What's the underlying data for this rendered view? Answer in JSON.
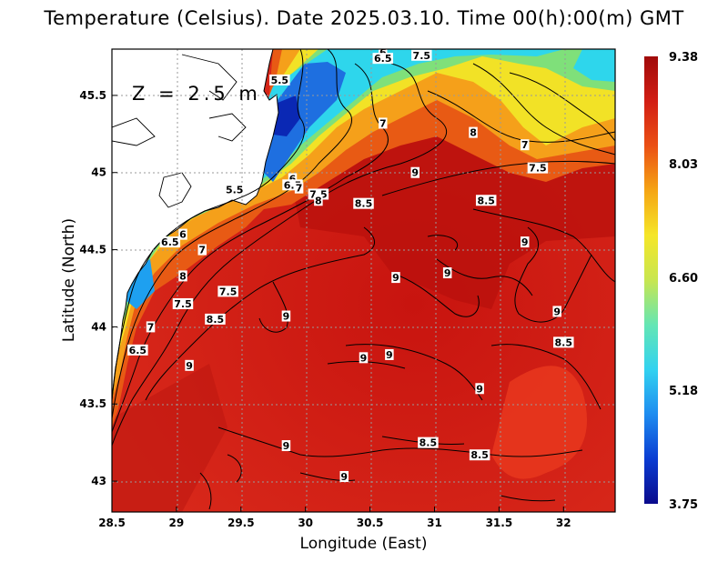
{
  "title": "Temperature (Celsius). Date 2025.03.10. Time 00(h):00(m) GMT",
  "depth_label": "Z = 2.5 m",
  "xlabel": "Longitude (East)",
  "ylabel": "Latitude (North)",
  "x_ticks": [
    "28.5",
    "29",
    "29.5",
    "30",
    "30.5",
    "31",
    "31.5",
    "32"
  ],
  "y_ticks": [
    "43",
    "43.5",
    "44",
    "44.5",
    "45",
    "45.5"
  ],
  "colorbar": {
    "ticks": [
      "9.38",
      "8.03",
      "6.60",
      "5.18",
      "3.75"
    ],
    "min": 3.75,
    "max": 9.38,
    "colors": [
      "#0a0a8c",
      "#0a3cd2",
      "#1e8cf0",
      "#32d2f0",
      "#64e6b4",
      "#c8e650",
      "#f5e628",
      "#f5a514",
      "#eb5014",
      "#d21e14",
      "#a00a0a"
    ]
  },
  "chart_data": {
    "type": "heatmap",
    "variable": "Temperature (Celsius)",
    "date": "2025.03.10",
    "time": "00(h):00(m) GMT",
    "depth": "Z = 2.5 m",
    "xlim": [
      28.5,
      32.4
    ],
    "ylim": [
      42.8,
      45.8
    ],
    "color_range": [
      3.75,
      9.38
    ],
    "grid": true,
    "contour_labels": [
      {
        "lon": 29.8,
        "lat": 45.6,
        "text": "5.5"
      },
      {
        "lon": 30.6,
        "lat": 45.78,
        "text": "6"
      },
      {
        "lon": 30.6,
        "lat": 45.74,
        "text": "6.5"
      },
      {
        "lon": 30.9,
        "lat": 45.76,
        "text": "7.5"
      },
      {
        "lon": 30.6,
        "lat": 45.32,
        "text": "7"
      },
      {
        "lon": 31.3,
        "lat": 45.26,
        "text": "8"
      },
      {
        "lon": 31.7,
        "lat": 45.18,
        "text": "7"
      },
      {
        "lon": 31.8,
        "lat": 45.03,
        "text": "7.5"
      },
      {
        "lon": 29.45,
        "lat": 44.89,
        "text": "5.5"
      },
      {
        "lon": 29.9,
        "lat": 44.96,
        "text": "6"
      },
      {
        "lon": 29.9,
        "lat": 44.92,
        "text": "6.5"
      },
      {
        "lon": 29.95,
        "lat": 44.9,
        "text": "7"
      },
      {
        "lon": 30.1,
        "lat": 44.86,
        "text": "7.5"
      },
      {
        "lon": 30.1,
        "lat": 44.82,
        "text": "8"
      },
      {
        "lon": 30.45,
        "lat": 44.8,
        "text": "8.5"
      },
      {
        "lon": 30.85,
        "lat": 45.0,
        "text": "9"
      },
      {
        "lon": 31.4,
        "lat": 44.82,
        "text": "8.5"
      },
      {
        "lon": 31.7,
        "lat": 44.55,
        "text": "9"
      },
      {
        "lon": 29.05,
        "lat": 44.6,
        "text": "6"
      },
      {
        "lon": 28.95,
        "lat": 44.55,
        "text": "6.5"
      },
      {
        "lon": 29.2,
        "lat": 44.5,
        "text": "7"
      },
      {
        "lon": 29.05,
        "lat": 44.33,
        "text": "8"
      },
      {
        "lon": 29.4,
        "lat": 44.23,
        "text": "7.5"
      },
      {
        "lon": 29.05,
        "lat": 44.15,
        "text": "7.5"
      },
      {
        "lon": 29.3,
        "lat": 44.05,
        "text": "8.5"
      },
      {
        "lon": 28.8,
        "lat": 44.0,
        "text": "7"
      },
      {
        "lon": 28.7,
        "lat": 43.85,
        "text": "6.5"
      },
      {
        "lon": 29.1,
        "lat": 43.75,
        "text": "9"
      },
      {
        "lon": 29.85,
        "lat": 44.07,
        "text": "9"
      },
      {
        "lon": 30.7,
        "lat": 44.32,
        "text": "9"
      },
      {
        "lon": 31.1,
        "lat": 44.35,
        "text": "9"
      },
      {
        "lon": 31.95,
        "lat": 44.1,
        "text": "9"
      },
      {
        "lon": 32.0,
        "lat": 43.9,
        "text": "8.5"
      },
      {
        "lon": 30.45,
        "lat": 43.8,
        "text": "9"
      },
      {
        "lon": 30.65,
        "lat": 43.82,
        "text": "9"
      },
      {
        "lon": 31.35,
        "lat": 43.6,
        "text": "9"
      },
      {
        "lon": 29.85,
        "lat": 43.23,
        "text": "9"
      },
      {
        "lon": 30.95,
        "lat": 43.25,
        "text": "8.5"
      },
      {
        "lon": 31.35,
        "lat": 43.17,
        "text": "8.5"
      },
      {
        "lon": 30.3,
        "lat": 43.03,
        "text": "9"
      }
    ]
  }
}
